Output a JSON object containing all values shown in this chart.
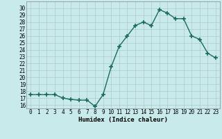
{
  "x": [
    0,
    1,
    2,
    3,
    4,
    5,
    6,
    7,
    8,
    9,
    10,
    11,
    12,
    13,
    14,
    15,
    16,
    17,
    18,
    19,
    20,
    21,
    22,
    23
  ],
  "y": [
    17.5,
    17.5,
    17.5,
    17.5,
    17.0,
    16.8,
    16.7,
    16.7,
    15.8,
    17.5,
    21.5,
    24.5,
    26.0,
    27.5,
    28.0,
    27.5,
    29.8,
    29.3,
    28.5,
    28.5,
    26.0,
    25.5,
    23.5,
    22.8
  ],
  "line_color": "#1a6b5a",
  "marker": "+",
  "markersize": 4,
  "linewidth": 1.0,
  "bg_color": "#c8eaea",
  "grid_color": "#b0c8c8",
  "xlabel": "Humidex (Indice chaleur)",
  "ylim": [
    15.5,
    31.0
  ],
  "xlim": [
    -0.5,
    23.5
  ],
  "yticks": [
    16,
    17,
    18,
    19,
    20,
    21,
    22,
    23,
    24,
    25,
    26,
    27,
    28,
    29,
    30
  ],
  "xticks": [
    0,
    1,
    2,
    3,
    4,
    5,
    6,
    7,
    8,
    9,
    10,
    11,
    12,
    13,
    14,
    15,
    16,
    17,
    18,
    19,
    20,
    21,
    22,
    23
  ],
  "tick_fontsize": 5.5,
  "label_fontsize": 6.5
}
